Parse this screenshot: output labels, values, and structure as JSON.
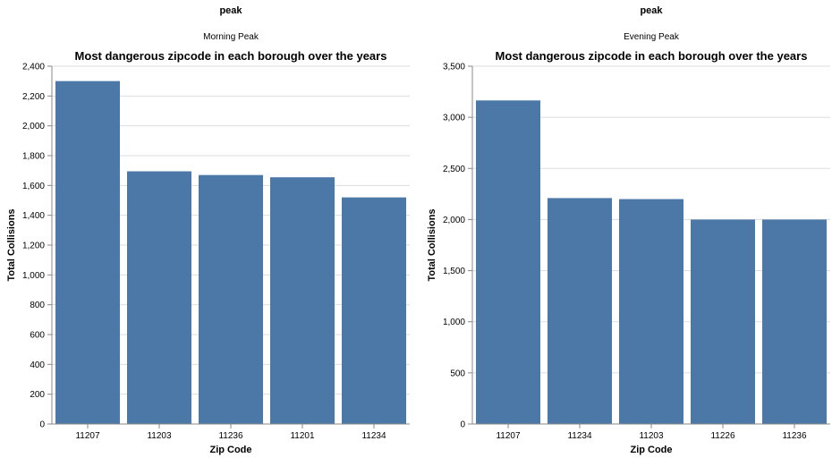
{
  "chart_data": [
    {
      "type": "bar",
      "facet_header": "peak",
      "facet_value": "Morning Peak",
      "title": "Most dangerous zipcode in each borough over the years",
      "xlabel": "Zip Code",
      "ylabel": "Total Collisions",
      "categories": [
        "11207",
        "11203",
        "11236",
        "11201",
        "11234"
      ],
      "values": [
        2300,
        1695,
        1670,
        1655,
        1520
      ],
      "ylim": [
        0,
        2400
      ],
      "yticks": [
        0,
        200,
        400,
        600,
        800,
        1000,
        1200,
        1400,
        1600,
        1800,
        2000,
        2200,
        2400
      ],
      "ytick_labels": [
        "0",
        "200",
        "400",
        "600",
        "800",
        "1,000",
        "1,200",
        "1,400",
        "1,600",
        "1,800",
        "2,000",
        "2,200",
        "2,400"
      ],
      "grid": true,
      "bar_color": "#4c78a8"
    },
    {
      "type": "bar",
      "facet_header": "peak",
      "facet_value": "Evening Peak",
      "title": "Most dangerous zipcode in each borough over the years",
      "xlabel": "Zip Code",
      "ylabel": "Total Collisions",
      "categories": [
        "11207",
        "11234",
        "11203",
        "11226",
        "11236"
      ],
      "values": [
        3165,
        2210,
        2200,
        2000,
        2000
      ],
      "ylim": [
        0,
        3500
      ],
      "yticks": [
        0,
        500,
        1000,
        1500,
        2000,
        2500,
        3000,
        3500
      ],
      "ytick_labels": [
        "0",
        "500",
        "1,000",
        "1,500",
        "2,000",
        "2,500",
        "3,000",
        "3,500"
      ],
      "grid": true,
      "bar_color": "#4c78a8"
    }
  ]
}
